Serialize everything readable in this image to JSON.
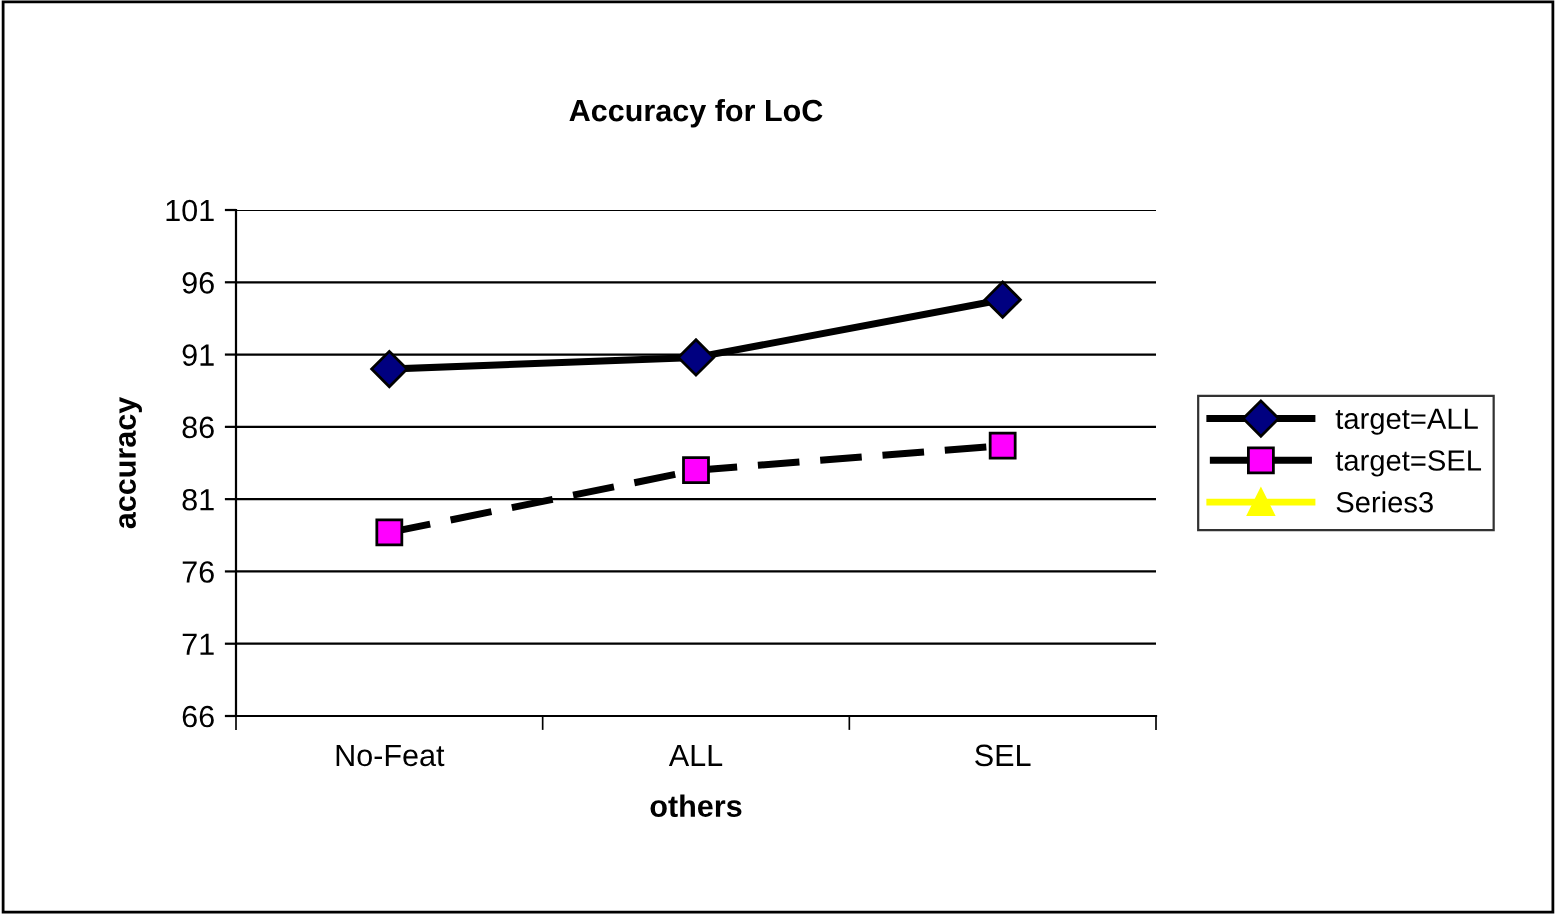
{
  "chart_data": {
    "type": "line",
    "title": "Accuracy for LoC",
    "xlabel": "others",
    "ylabel": "accuracy",
    "categories": [
      "No-Feat",
      "ALL",
      "SEL"
    ],
    "series": [
      {
        "name": "target=ALL",
        "color": "#000000",
        "colors": [
          "#000080",
          "#000080",
          "#000080"
        ],
        "marker": "diamond",
        "line_style": "solid",
        "values": [
          90.0,
          90.8,
          94.8
        ]
      },
      {
        "name": "target=SEL",
        "color": "#000000",
        "colors": [
          "#ff00ff",
          "#ff00ff",
          "#ff00ff"
        ],
        "marker": "square",
        "line_style": "dashed",
        "values": [
          78.7,
          83.0,
          84.7
        ]
      },
      {
        "name": "Series3",
        "color": "#ffff00",
        "colors": [
          "#ffff00",
          "#ffff00",
          "#ffff00"
        ],
        "marker": "triangle",
        "line_style": "solid",
        "values": [
          null,
          null,
          null
        ]
      }
    ],
    "ylim": [
      66,
      101
    ],
    "yticks": [
      66,
      71,
      76,
      81,
      86,
      91,
      96,
      101
    ],
    "grid": "y",
    "legend": "right"
  }
}
